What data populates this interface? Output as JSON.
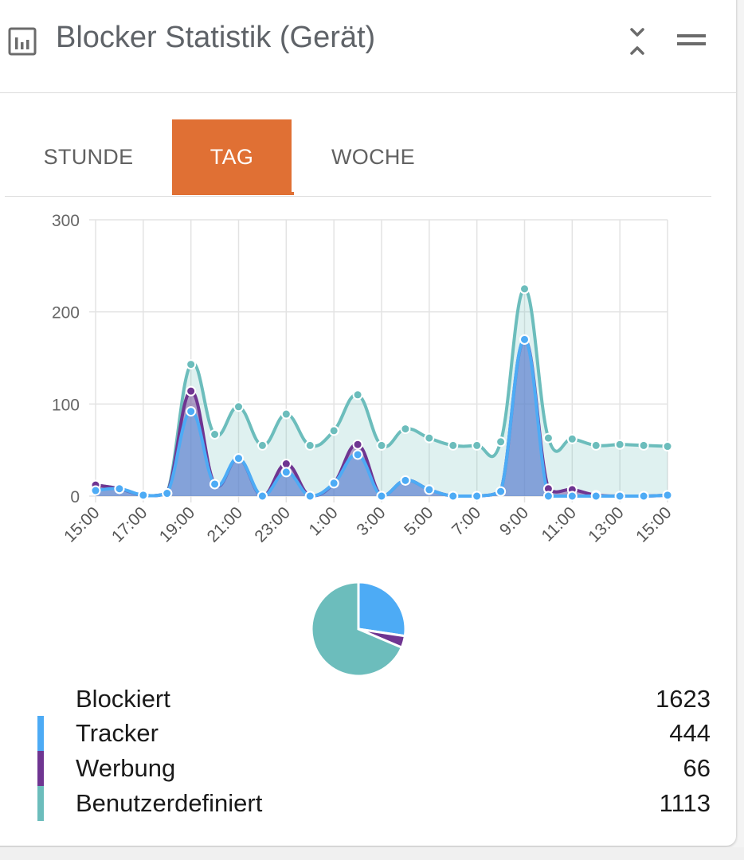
{
  "header": {
    "title": "Blocker Statistik (Gerät)",
    "icon": "bar-chart-icon",
    "collapse_icon": "collapse-icon",
    "menu_icon": "menu-icon"
  },
  "tabs": [
    {
      "label": "STUNDE",
      "active": false
    },
    {
      "label": "TAG",
      "active": true
    },
    {
      "label": "WOCHE",
      "active": false
    }
  ],
  "colors": {
    "accent": "#e07034",
    "tracker": "#4dabf5",
    "werbung": "#6f3591",
    "benutzerdefiniert": "#6cbdbc"
  },
  "chart_data": [
    {
      "type": "area",
      "x": [
        "15:00",
        "16:00",
        "17:00",
        "18:00",
        "19:00",
        "20:00",
        "21:00",
        "22:00",
        "23:00",
        "0:00",
        "1:00",
        "2:00",
        "3:00",
        "4:00",
        "5:00",
        "6:00",
        "7:00",
        "8:00",
        "9:00",
        "10:00",
        "11:00",
        "12:00",
        "13:00",
        "14:00",
        "15:00"
      ],
      "x_tick_labels": [
        "15:00",
        "17:00",
        "19:00",
        "21:00",
        "23:00",
        "1:00",
        "3:00",
        "5:00",
        "7:00",
        "9:00",
        "11:00",
        "13:00",
        "15:00"
      ],
      "series": [
        {
          "name": "Tracker",
          "color": "#4dabf5",
          "values": [
            6,
            8,
            1,
            3,
            92,
            13,
            41,
            0,
            26,
            0,
            14,
            45,
            0,
            17,
            7,
            0,
            0,
            5,
            170,
            0,
            0,
            0,
            0,
            0,
            1
          ]
        },
        {
          "name": "Werbung",
          "color": "#6f3591",
          "values": [
            12,
            8,
            1,
            3,
            114,
            13,
            41,
            0,
            35,
            0,
            14,
            56,
            0,
            17,
            7,
            0,
            0,
            5,
            170,
            8,
            7,
            1,
            0,
            0,
            1
          ]
        },
        {
          "name": "Benutzerdefiniert",
          "color": "#6cbdbc",
          "values": [
            12,
            8,
            1,
            3,
            143,
            67,
            97,
            55,
            89,
            55,
            71,
            110,
            55,
            73,
            63,
            55,
            55,
            59,
            225,
            63,
            62,
            55,
            56,
            55,
            54
          ]
        }
      ],
      "ylim": [
        0,
        300
      ],
      "y_ticks": [
        0,
        100,
        200,
        300
      ],
      "grid": true
    },
    {
      "type": "pie",
      "categories": [
        "Tracker",
        "Werbung",
        "Benutzerdefiniert"
      ],
      "values": [
        444,
        66,
        1113
      ],
      "colors": [
        "#4dabf5",
        "#6f3591",
        "#6cbdbc"
      ]
    }
  ],
  "legend": {
    "total": {
      "label": "Blockiert",
      "value": "1623"
    },
    "items": [
      {
        "label": "Tracker",
        "value": "444",
        "color": "#4dabf5"
      },
      {
        "label": "Werbung",
        "value": "66",
        "color": "#6f3591"
      },
      {
        "label": "Benutzerdefiniert",
        "value": "1113",
        "color": "#6cbdbc"
      }
    ]
  }
}
